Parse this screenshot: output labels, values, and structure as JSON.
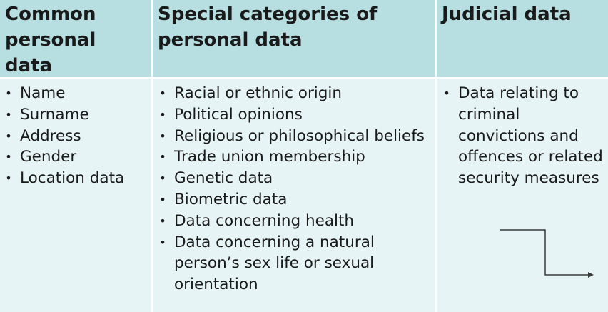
{
  "headers": [
    "Common personal data",
    "Special categories of personal data",
    "Judicial data"
  ],
  "columns": [
    [
      "Name",
      "Surname",
      "Address",
      "Gender",
      "Location data"
    ],
    [
      "Racial or ethnic origin",
      "Political opinions",
      "Religious or philosophical beliefs",
      "Trade union membership",
      "Genetic data",
      "Biometric data",
      "Data concerning health",
      "Data concerning a natural person’s sex life or sexual orientation"
    ],
    [
      "Data relating to criminal convictions and offences or related security measures"
    ]
  ],
  "bullet_glyph": "•",
  "colors": {
    "header_bg": "#b7dfe2",
    "cell_bg": "#e7f4f5",
    "text": "#1a1a1a",
    "arrow": "#3a3a3a"
  },
  "icons": {
    "connector": "elbow-arrow-icon"
  }
}
